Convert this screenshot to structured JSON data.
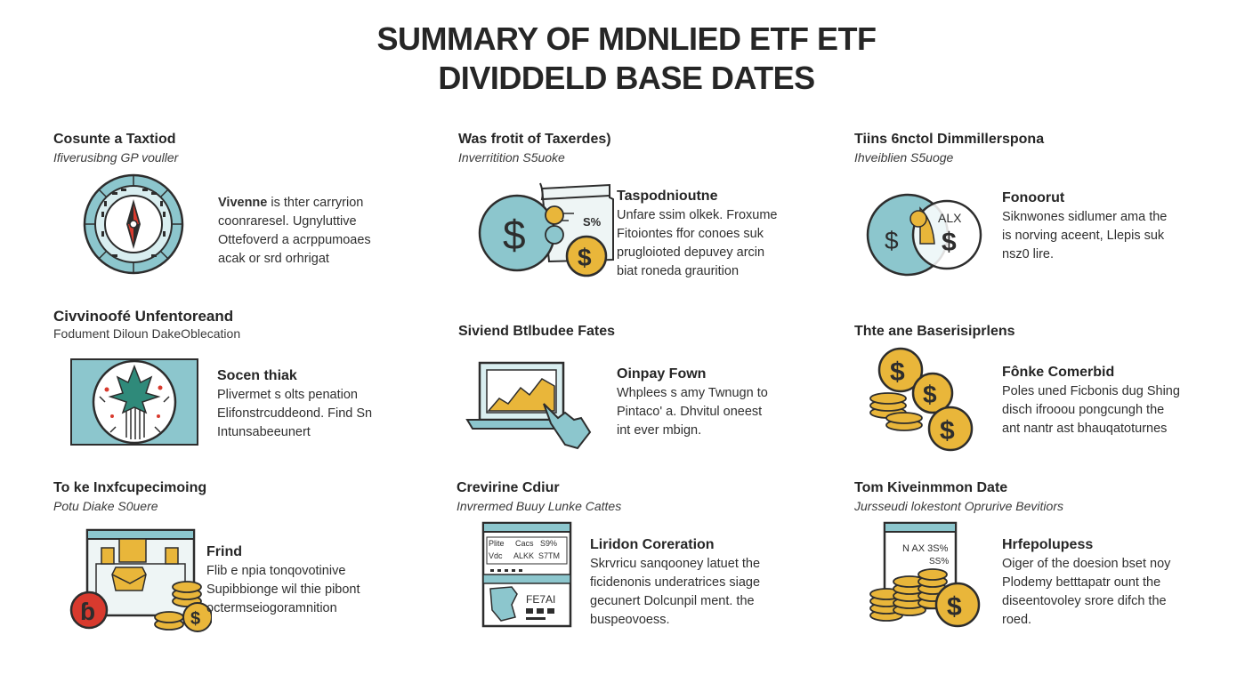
{
  "title": {
    "line1": "SUMMARY OF MDNLIED ETF ETF",
    "line2": "DIVIDDELD BASE DATES"
  },
  "colors": {
    "teal": "#7dbcc4",
    "gold": "#e9b63a",
    "ink": "#2d2d2d",
    "red": "#d83a2e",
    "light": "#eef5f5"
  },
  "cells": [
    {
      "heading": "Cosunte a Taxtiod",
      "subheading": "Ifiverusibng GP vouller",
      "icon": "compass-dial-icon",
      "body_title": "Vivenne",
      "body_lines": [
        "is thter carryrion",
        "coonraresel. Ugnyluttive",
        "Ottefoverd a acrppumoaes",
        "acak or srd orhrigat"
      ]
    },
    {
      "heading": "Was frotit of Taxerdes)",
      "subheading": "Inverritition S5uoke",
      "icon": "dollar-coins-document-icon",
      "body_title": "Taspodnioutne",
      "body_lines": [
        "Unfare ssim olkek. Froxume",
        "Fitoiontes ffor conoes suk",
        "prugloioted depuvey arcin",
        "biat roneda graurition"
      ]
    },
    {
      "heading": "Tiins 6nctol Dimmillerspona",
      "subheading": "Ihveiblien S5uoge",
      "icon": "venn-dollar-icon",
      "body_title": "Fonoorut",
      "body_lines": [
        "Siknwones sidlumer ama the",
        "is norving aceent, Llepis suk",
        "nsz0 lire."
      ]
    },
    {
      "heading": "Civvinoofé Unfentoreand",
      "subheading": "Fodument Diloun DakeOblecation",
      "icon": "leaf-seal-icon",
      "body_title": "Socen thiak",
      "body_lines": [
        "Plivermet s olts penation",
        "Elifonstrcuddeond. Find Sn",
        "Intunsabeeunert"
      ]
    },
    {
      "heading": "Siviend Btlbudee Fates",
      "subheading": "",
      "icon": "laptop-chart-hand-icon",
      "body_title": "Oinpay Fown",
      "body_lines": [
        "Whplees s amy Twnugn to",
        "Pintaco' a. Dhvitul oneest",
        "int ever mbign."
      ]
    },
    {
      "heading": "Thte ane Baserisiprlens",
      "subheading": "",
      "icon": "coin-stacks-icon",
      "body_title": "Fônke Comerbid",
      "body_lines": [
        "Poles uned Ficbonis dug Shing",
        "disch ifrooou pongcungh the",
        "ant nantr ast bhauqatoturnes"
      ]
    },
    {
      "heading": "To ke Inxfcupecimoing",
      "subheading": "Potu Diake S0uere",
      "icon": "monitor-envelope-coins-icon",
      "body_title": "Frind",
      "body_lines": [
        "Flib e npia tonqovotinive",
        "Supibbionge wil thie pibont",
        "octermseiogoramnition"
      ]
    },
    {
      "heading": "Crevirine Cdiur",
      "subheading": "Invrermed Buuy Lunke Cattes",
      "icon": "browser-document-icon",
      "body_title": "Liridon Coreration",
      "body_lines": [
        "Skrvricu sanqooney latuet the",
        "ficidenonis underatrices siage",
        "gecunert Dolcunpil ment. the",
        "buspeovoess."
      ]
    },
    {
      "heading": "Tom Kiveinmmon Date",
      "subheading": "Jursseudi lokestont Oprurive Bevitiors",
      "icon": "tablet-coins-icon",
      "body_title": "Hrfepolupess",
      "body_lines": [
        "Oiger of the doesion bset noy",
        "Plodemy betttapatr ount the",
        "diseentovoley srore difch the",
        "roed."
      ]
    }
  ],
  "illus_text": {
    "pct_label": "S%",
    "alx_label": "ALX",
    "dollar": "$",
    "red_glyph": "ɓ",
    "browser_row1": [
      "Plite",
      "Cacs",
      "S9%"
    ],
    "browser_row2": [
      "Vdc",
      "ALKK",
      "S7TM"
    ],
    "browser_code": "FE7AI",
    "tablet_lines": [
      "N AX 3S%",
      "SS%"
    ]
  }
}
